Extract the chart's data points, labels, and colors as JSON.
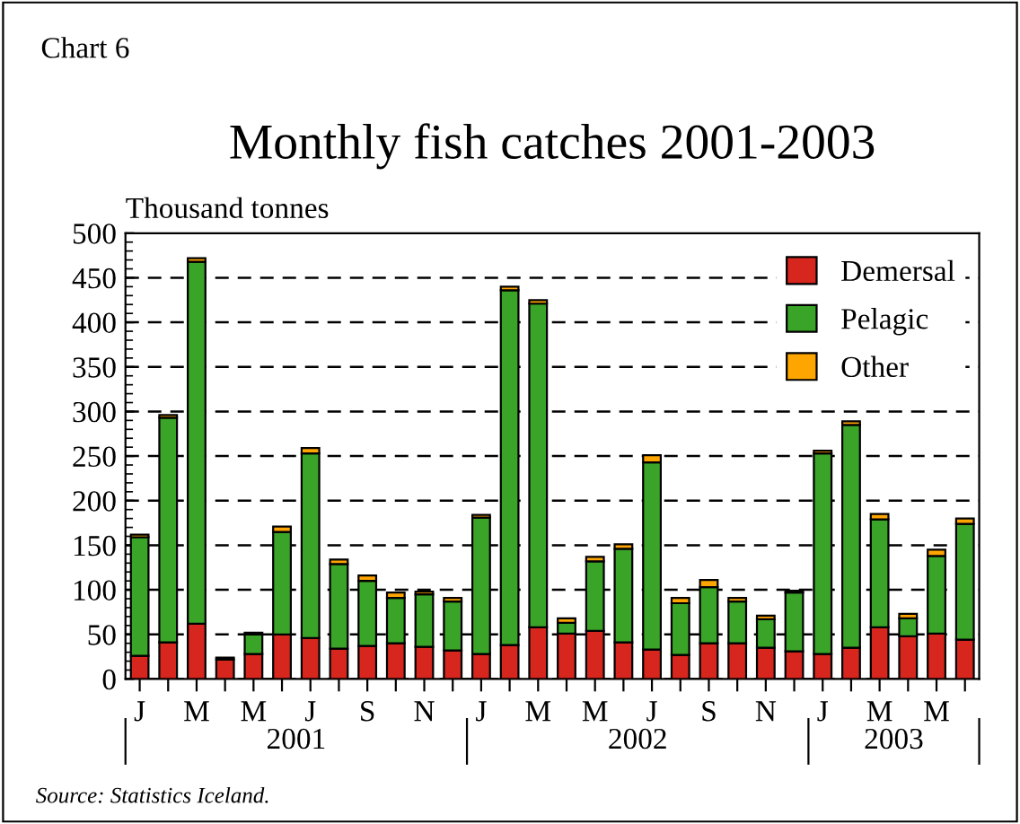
{
  "chart_data": {
    "type": "bar",
    "stacked": true,
    "title": "Monthly fish catches 2001-2003",
    "ylabel": "Thousand tonnes",
    "categories": [
      "J",
      null,
      "M",
      null,
      "M",
      null,
      "J",
      null,
      "S",
      null,
      "N",
      null,
      "J",
      null,
      "M",
      null,
      "M",
      null,
      "J",
      null,
      "S",
      null,
      "N",
      null,
      "J",
      null,
      "M",
      null,
      "M",
      null
    ],
    "series": [
      {
        "name": "Demersal",
        "color": "#d7261e",
        "values": [
          26,
          41,
          62,
          22,
          28,
          50,
          46,
          34,
          37,
          40,
          36,
          32,
          28,
          38,
          58,
          51,
          54,
          41,
          33,
          27,
          40,
          40,
          35,
          31,
          28,
          35,
          58,
          48,
          51,
          44
        ]
      },
      {
        "name": "Pelagic",
        "color": "#3aa428",
        "values": [
          133,
          252,
          406,
          0,
          22,
          115,
          207,
          95,
          73,
          51,
          59,
          55,
          153,
          398,
          363,
          12,
          78,
          105,
          210,
          58,
          63,
          47,
          32,
          66,
          225,
          250,
          121,
          20,
          87,
          130
        ]
      },
      {
        "name": "Other",
        "color": "#ffa500",
        "values": [
          3,
          3,
          4,
          2,
          2,
          6,
          6,
          5,
          6,
          6,
          3,
          4,
          3,
          4,
          4,
          5,
          5,
          5,
          8,
          6,
          8,
          4,
          4,
          2,
          3,
          4,
          6,
          5,
          7,
          6
        ]
      }
    ],
    "ylim": [
      0,
      500
    ],
    "yticks": [
      0,
      50,
      100,
      150,
      200,
      250,
      300,
      350,
      400,
      450,
      500
    ],
    "grid": "y",
    "legend": "top right",
    "annotations": [
      "Chart 6",
      "2001",
      "2002",
      "2003",
      "Source: Statistics Iceland."
    ]
  }
}
